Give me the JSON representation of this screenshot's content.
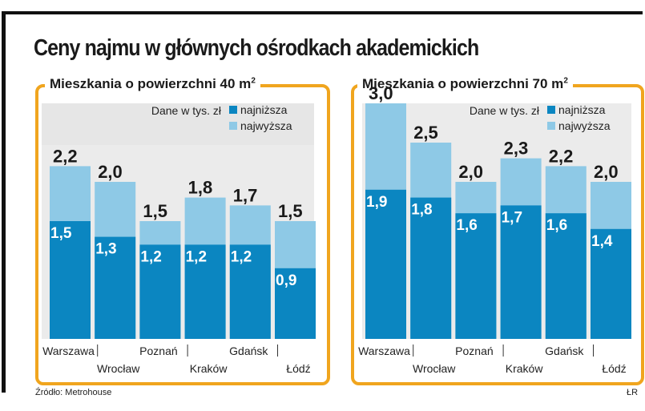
{
  "title": "Ceny najmu w głównych ośrodkach akademickich",
  "source": "Źródło: Metrohouse",
  "author": "ŁR",
  "colors": {
    "accent": "#f0a51e",
    "low": "#0b86c1",
    "high": "#8ec9e6",
    "plotBg": "#e8e8e8"
  },
  "chart_data": [
    {
      "type": "bar",
      "title": "Mieszkania o powierzchni 40 m",
      "title_sup": "2",
      "subtitle": "Dane w tys. zł",
      "categories": [
        "Warszawa",
        "Wrocław",
        "Poznań",
        "Kraków",
        "Gdańsk",
        "Łódź"
      ],
      "series": [
        {
          "name": "najniższa",
          "values": [
            1.5,
            1.3,
            1.2,
            1.2,
            1.2,
            0.9
          ]
        },
        {
          "name": "najwyższa",
          "values": [
            2.2,
            2.0,
            1.5,
            1.8,
            1.7,
            1.5
          ]
        }
      ],
      "low_labels": [
        "1,5",
        "1,3",
        "1,2",
        "1,2",
        "1,2",
        "0,9"
      ],
      "high_labels": [
        "2,2",
        "2,0",
        "1,5",
        "1,8",
        "1,7",
        "1,5"
      ],
      "ylim": [
        0,
        3.0
      ]
    },
    {
      "type": "bar",
      "title": "Mieszkania o powierzchni 70 m",
      "title_sup": "2",
      "subtitle": "Dane w tys. zł",
      "categories": [
        "Warszawa",
        "Wrocław",
        "Poznań",
        "Kraków",
        "Gdańsk",
        "Łódź"
      ],
      "series": [
        {
          "name": "najniższa",
          "values": [
            1.9,
            1.8,
            1.6,
            1.7,
            1.6,
            1.4
          ]
        },
        {
          "name": "najwyższa",
          "values": [
            3.0,
            2.5,
            2.0,
            2.3,
            2.2,
            2.0
          ]
        }
      ],
      "low_labels": [
        "1,9",
        "1,8",
        "1,6",
        "1,7",
        "1,6",
        "1,4"
      ],
      "high_labels": [
        "3,0",
        "2,5",
        "2,0",
        "2,3",
        "2,2",
        "2,0"
      ],
      "ylim": [
        0,
        3.0
      ]
    }
  ]
}
